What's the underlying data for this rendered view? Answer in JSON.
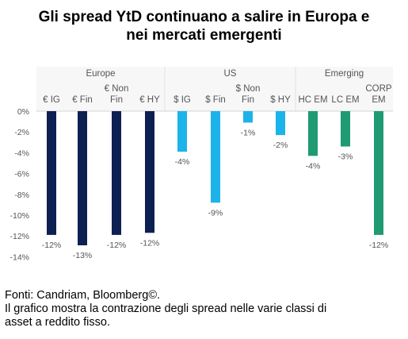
{
  "title_lines": [
    "Gli spread YtD continuano a salire in Europa e",
    "nei mercati emergenti"
  ],
  "footer": {
    "source": "Fonti: Candriam, Bloomberg©.",
    "note_lines": [
      "Il grafico mostra la contrazione degli spread nelle varie classi di",
      "asset a reddito fisso."
    ]
  },
  "colors": {
    "Europe": "#0d2052",
    "US": "#1cb3ea",
    "Emerging": "#1f9a72"
  },
  "chart_data": {
    "type": "bar",
    "groups": [
      {
        "name": "Europe",
        "categories": [
          "€ IG",
          "€ Fin",
          "€ Non Fin",
          "€ HY"
        ],
        "values": [
          -12,
          -13,
          -12,
          -12
        ],
        "labels": [
          "-12%",
          "-13%",
          "-12%",
          "-12%"
        ]
      },
      {
        "name": "US",
        "categories": [
          "$ IG",
          "$ Fin",
          "$ Non Fin",
          "$ HY"
        ],
        "values": [
          -4,
          -9,
          -1,
          -2
        ],
        "labels": [
          "-4%",
          "-9%",
          "-1%",
          "-2%"
        ]
      },
      {
        "name": "Emerging",
        "categories": [
          "HC EM",
          "LC EM",
          "CORP EM"
        ],
        "values": [
          -4,
          -3,
          -12
        ],
        "labels": [
          "-4%",
          "-3%",
          "-12%"
        ]
      }
    ],
    "bar_values": [
      -11.9,
      -12.9,
      -11.9,
      -11.7,
      -3.9,
      -8.8,
      -1.1,
      -2.3,
      -4.3,
      -3.4,
      -11.9
    ],
    "y_ticks": [
      0,
      -2,
      -4,
      -6,
      -8,
      -10,
      -12,
      -14
    ],
    "y_tick_labels": [
      "0%",
      "-2%",
      "-4%",
      "-6%",
      "-8%",
      "-10%",
      "-12%",
      "-14%"
    ],
    "ylim": [
      -14,
      0
    ]
  }
}
